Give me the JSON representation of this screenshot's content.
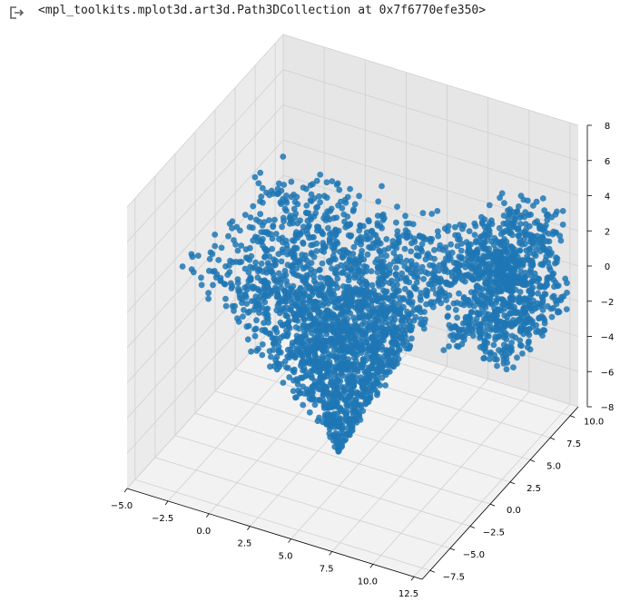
{
  "output": {
    "icon": "output-exit-icon",
    "text": "<mpl_toolkits.mplot3d.art3d.Path3DCollection at 0x7f6770efe350>"
  },
  "colors": {
    "point": "#1f77b4",
    "pane_light": "#f2f2f2",
    "pane_mid": "#ebebeb",
    "pane_dark": "#e6e6e6",
    "grid": "#d0d0d0",
    "axis": "#000000"
  },
  "chart_data": {
    "type": "scatter",
    "projection": "3d",
    "title": "",
    "xlabel": "",
    "ylabel": "",
    "zlabel": "",
    "xlim": [
      -5,
      13
    ],
    "ylim": [
      -8.5,
      11
    ],
    "zlim": [
      -8,
      8
    ],
    "x_ticks": [
      "−5.0",
      "−2.5",
      "0.0",
      "2.5",
      "5.0",
      "7.5",
      "10.0",
      "12.5"
    ],
    "y_ticks": [
      "−7.5",
      "−5.0",
      "−2.5",
      "0.0",
      "2.5",
      "5.0",
      "7.5",
      "10.0"
    ],
    "z_ticks": [
      "−8",
      "−6",
      "−4",
      "−2",
      "0",
      "2",
      "4",
      "6",
      "8"
    ],
    "x_tick_values": [
      -5,
      -2.5,
      0,
      2.5,
      5,
      7.5,
      10,
      12.5
    ],
    "y_tick_values": [
      -7.5,
      -5,
      -2.5,
      0,
      2.5,
      5,
      7.5,
      10
    ],
    "z_tick_values": [
      -8,
      -6,
      -4,
      -2,
      0,
      2,
      4,
      6,
      8
    ],
    "grid": true,
    "legend": "none",
    "series": [
      {
        "clusters": [
          {
            "description": "large wedge-shaped cloud",
            "x_range": [
              -5,
              9
            ],
            "y_range": [
              -6,
              7
            ],
            "z_range": [
              -8,
              4
            ]
          },
          {
            "description": "compact cloud",
            "x_range": [
              9,
              13
            ],
            "y_range": [
              2,
              10
            ],
            "z_range": [
              -2,
              4
            ]
          }
        ]
      }
    ]
  }
}
